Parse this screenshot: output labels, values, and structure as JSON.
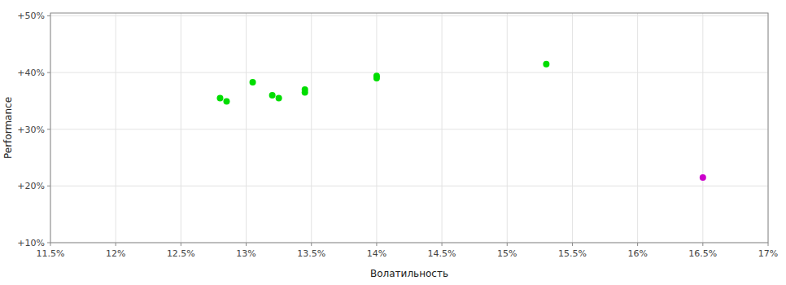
{
  "chart_data": {
    "type": "scatter",
    "xlabel": "Волатильность",
    "ylabel": "Performance",
    "xlim": [
      0.115,
      0.17
    ],
    "ylim": [
      0.1,
      0.505
    ],
    "xticks": [
      {
        "value": 0.115,
        "label": "11.5%"
      },
      {
        "value": 0.12,
        "label": "12%"
      },
      {
        "value": 0.125,
        "label": "12.5%"
      },
      {
        "value": 0.13,
        "label": "13%"
      },
      {
        "value": 0.135,
        "label": "13.5%"
      },
      {
        "value": 0.14,
        "label": "14%"
      },
      {
        "value": 0.145,
        "label": "14.5%"
      },
      {
        "value": 0.15,
        "label": "15%"
      },
      {
        "value": 0.155,
        "label": "15.5%"
      },
      {
        "value": 0.16,
        "label": "16%"
      },
      {
        "value": 0.165,
        "label": "16.5%"
      },
      {
        "value": 0.17,
        "label": "17%"
      }
    ],
    "yticks": [
      {
        "value": 0.1,
        "label": "+10%"
      },
      {
        "value": 0.2,
        "label": "+20%"
      },
      {
        "value": 0.3,
        "label": "+30%"
      },
      {
        "value": 0.4,
        "label": "+40%"
      },
      {
        "value": 0.5,
        "label": "+50%"
      }
    ],
    "grid": true,
    "series": [
      {
        "color": "#00dd00",
        "x": [
          0.128,
          0.1285,
          0.1305,
          0.132,
          0.1325,
          0.1345,
          0.1345,
          0.14,
          0.14,
          0.153
        ],
        "values": [
          0.355,
          0.349,
          0.383,
          0.36,
          0.355,
          0.365,
          0.37,
          0.394,
          0.39,
          0.415
        ]
      },
      {
        "color": "#cc00cc",
        "x": [
          0.165
        ],
        "values": [
          0.215
        ]
      }
    ]
  }
}
